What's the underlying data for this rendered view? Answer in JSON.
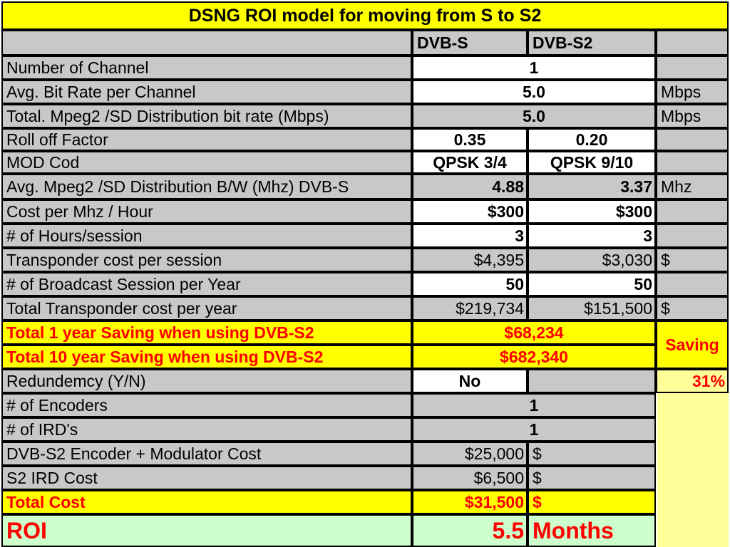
{
  "title": "DSNG ROI model for moving from S to S2",
  "header": {
    "col1": "DVB-S",
    "col2": "DVB-S2"
  },
  "rows": {
    "channels": {
      "label": "Number of Channel",
      "value": "1"
    },
    "bitrate": {
      "label": "Avg. Bit Rate per Channel",
      "value": "5.0",
      "unit": "Mbps"
    },
    "total_bitrate": {
      "label": "Total. Mpeg2 /SD Distribution bit rate (Mbps)",
      "value": "5.0",
      "unit": "Mbps"
    },
    "rolloff": {
      "label": "Roll off Factor",
      "s": "0.35",
      "s2": "0.20"
    },
    "modcod": {
      "label": "MOD Cod",
      "s": "QPSK 3/4",
      "s2": "QPSK 9/10"
    },
    "bandwidth": {
      "label": "Avg. Mpeg2 /SD Distribution B/W (Mhz) DVB-S",
      "s": "4.88",
      "s2": "3.37",
      "unit": "Mhz"
    },
    "cost_mhz": {
      "label": "Cost per Mhz / Hour",
      "s": "$300",
      "s2": "$300"
    },
    "hours": {
      "label": "# of Hours/session",
      "s": "3",
      "s2": "3"
    },
    "transponder_session": {
      "label": "Transponder cost per session",
      "s": "$4,395",
      "s2": "$3,030",
      "unit": "$"
    },
    "sessions": {
      "label": "# of Broadcast Session per Year",
      "s": "50",
      "s2": "50"
    },
    "transponder_year": {
      "label": "Total Transponder cost per year",
      "s": "$219,734",
      "s2": "$151,500",
      "unit": "$"
    },
    "saving1": {
      "label": "Total 1 year Saving when using DVB-S2",
      "value": "$68,234"
    },
    "saving10": {
      "label": "Total 10 year Saving when using DVB-S2",
      "value": "$682,340"
    },
    "saving_label": "Saving",
    "redundancy": {
      "label": "Redundemcy (Y/N)",
      "value": "No"
    },
    "saving_pct": "31%",
    "encoders": {
      "label": "# of Encoders",
      "value": "1"
    },
    "ird": {
      "label": "# of IRD's",
      "value": "1"
    },
    "encoder_cost": {
      "label": "DVB-S2 Encoder + Modulator Cost",
      "value": "$25,000",
      "unit": "$"
    },
    "ird_cost": {
      "label": "S2 IRD Cost",
      "value": "$6,500",
      "unit": "$"
    },
    "total_cost": {
      "label": "Total Cost",
      "value": "$31,500",
      "unit": "$"
    },
    "roi": {
      "label": "ROI",
      "value": "5.5",
      "unit": "Months"
    }
  },
  "colors": {
    "gray": "#c8c8c8",
    "yellow": "#ffff00",
    "light_yellow": "#ffff99",
    "light_green": "#ccffcc",
    "red": "#ff0000"
  }
}
